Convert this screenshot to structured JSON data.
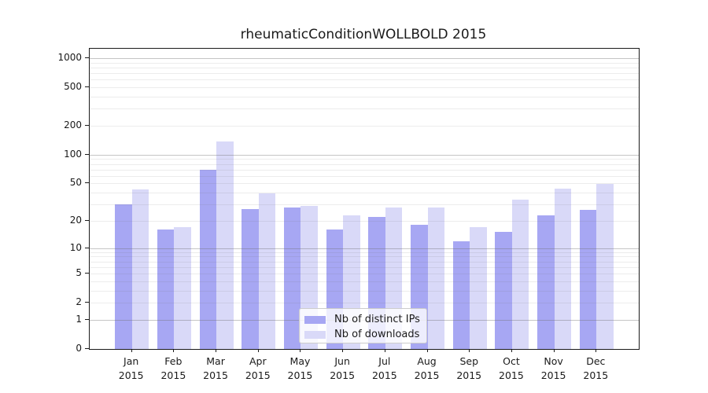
{
  "title": "rheumaticConditionWOLLBOLD 2015",
  "chart_data": {
    "type": "bar",
    "title": "rheumaticConditionWOLLBOLD 2015",
    "categories": [
      "Jan",
      "Feb",
      "Mar",
      "Apr",
      "May",
      "Jun",
      "Jul",
      "Aug",
      "Sep",
      "Oct",
      "Nov",
      "Dec"
    ],
    "year_label": "2015",
    "series": [
      {
        "name": "Nb of distinct IPs",
        "color": "#a7a7f3",
        "values": [
          30,
          16,
          70,
          27,
          28,
          16,
          22,
          18,
          12,
          15,
          23,
          26
        ]
      },
      {
        "name": "Nb of downloads",
        "color": "#d9d9f8",
        "values": [
          43,
          17,
          138,
          39,
          29,
          23,
          28,
          28,
          17,
          34,
          44,
          49
        ]
      }
    ],
    "xlabel": "",
    "ylabel": "",
    "yscale": "log1p",
    "ylim": [
      0,
      1250
    ],
    "yticks": [
      0,
      1,
      2,
      5,
      10,
      20,
      50,
      100,
      200,
      500,
      1000
    ],
    "major_gridlines": [
      1,
      10,
      100,
      1000
    ],
    "minor_gridlines": [
      2,
      3,
      4,
      5,
      6,
      7,
      8,
      9,
      20,
      30,
      40,
      50,
      60,
      70,
      80,
      90,
      200,
      300,
      400,
      500,
      600,
      700,
      800,
      900
    ],
    "grid": true,
    "legend_position": "bottom-center"
  }
}
